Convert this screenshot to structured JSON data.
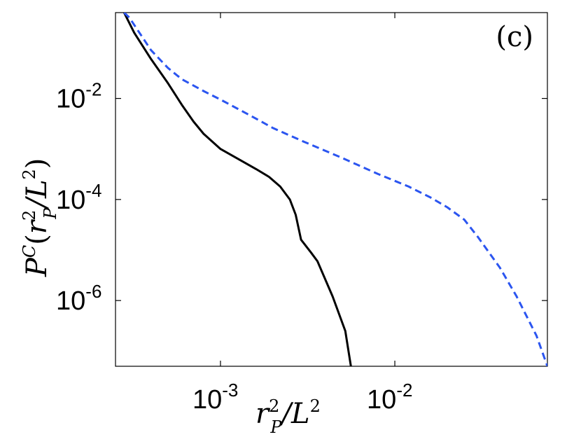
{
  "chart_data": {
    "type": "line",
    "x_scale": "log",
    "y_scale": "log",
    "xlim": [
      0.00025,
      0.075
    ],
    "ylim": [
      5e-08,
      0.5
    ],
    "grid": false,
    "annotation": "(c)",
    "xlabel": {
      "base": "r",
      "sup": "2",
      "sub": "P",
      "tail": "/L",
      "tail_sup": "2"
    },
    "ylabel": {
      "p": "P",
      "p_sup": "C",
      "open": "(",
      "base": "r",
      "sup": "2",
      "sub": "P",
      "tail": "/L",
      "tail_sup": "2",
      "close": ")"
    },
    "x_ticks": [
      {
        "value": 0.001,
        "base": "10",
        "exp": "-3"
      },
      {
        "value": 0.01,
        "base": "10",
        "exp": "-2"
      }
    ],
    "y_ticks": [
      {
        "value": 0.01,
        "base": "10",
        "exp": "-2"
      },
      {
        "value": 0.0001,
        "base": "10",
        "exp": "-4"
      },
      {
        "value": 1e-06,
        "base": "10",
        "exp": "-6"
      }
    ],
    "series": [
      {
        "style": "solid",
        "color": "#000000",
        "x": [
          0.00028,
          0.00032,
          0.0004,
          0.0005,
          0.0006,
          0.0007,
          0.0008,
          0.001,
          0.0013,
          0.0016,
          0.0019,
          0.0022,
          0.0025,
          0.0027,
          0.0029,
          0.0033,
          0.0036,
          0.0044,
          0.0052,
          0.0056
        ],
        "y": [
          0.5,
          0.2,
          0.06,
          0.02,
          0.0075,
          0.0035,
          0.002,
          0.001,
          0.0006,
          0.0004,
          0.00028,
          0.00018,
          0.0001,
          5e-05,
          1.6e-05,
          9e-06,
          6e-06,
          1.2e-06,
          2.5e-07,
          5e-08
        ]
      },
      {
        "style": "dashed",
        "color": "#2b55f0",
        "x": [
          0.00028,
          0.0003,
          0.0004,
          0.0005,
          0.0006,
          0.0008,
          0.001,
          0.0015,
          0.002,
          0.003,
          0.005,
          0.008,
          0.012,
          0.016,
          0.02,
          0.025,
          0.03,
          0.04,
          0.05,
          0.065,
          0.075
        ],
        "y": [
          0.5,
          0.4,
          0.09,
          0.04,
          0.024,
          0.014,
          0.0095,
          0.0045,
          0.0026,
          0.0014,
          0.00066,
          0.00032,
          0.00018,
          0.00011,
          7e-05,
          4e-05,
          1.8e-05,
          4.5e-06,
          1.2e-06,
          2e-07,
          5e-08
        ]
      }
    ]
  }
}
